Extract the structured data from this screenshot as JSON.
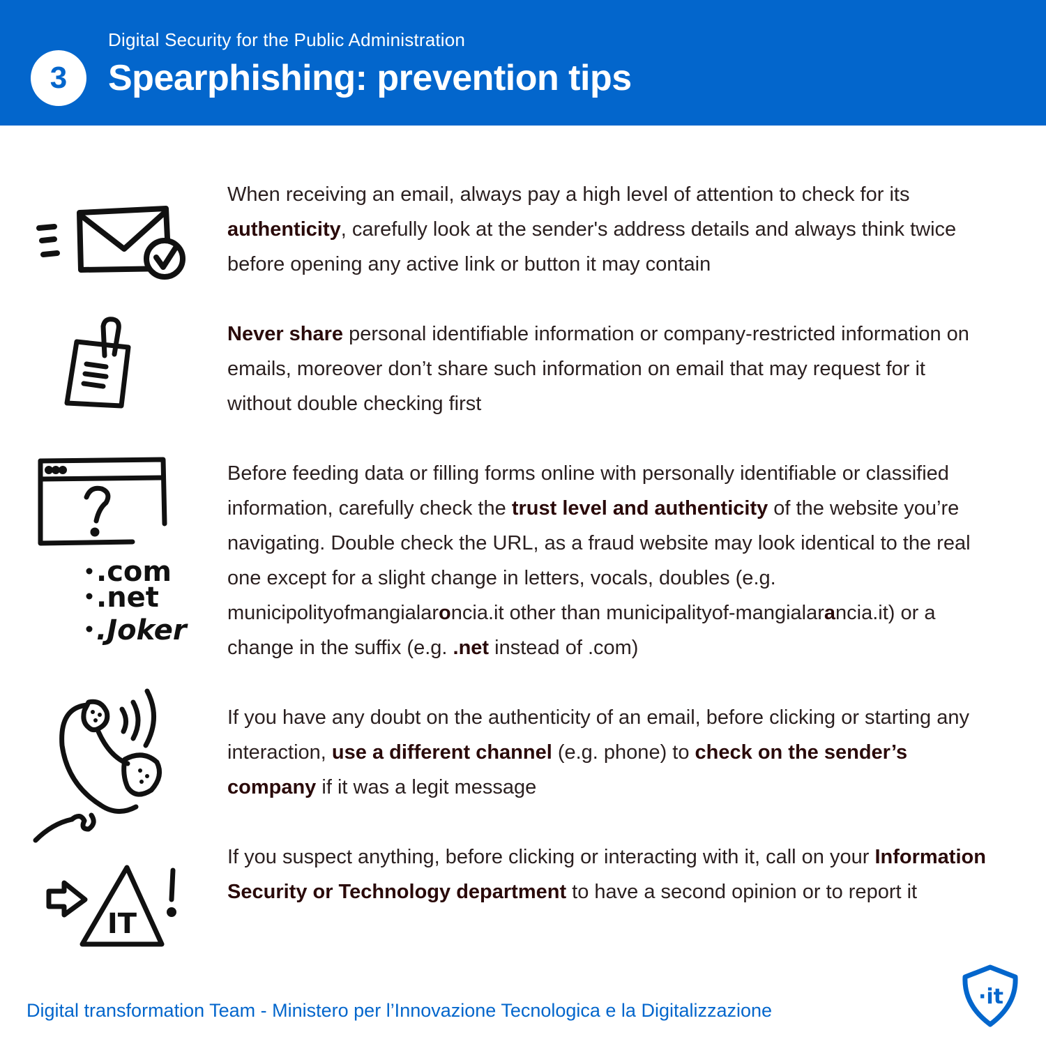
{
  "header": {
    "step_number": "3",
    "subtitle": "Digital Security for the Public Administration",
    "title": "Spearphishing: prevention tips"
  },
  "tips": [
    {
      "icon": "envelope-check-icon",
      "segments": [
        {
          "text": "When receiving an email, always pay a high level of attention to check for its ",
          "bold": false
        },
        {
          "text": "authenticity",
          "bold": true
        },
        {
          "text": ", carefully look at the sender's address details and always think twice before opening any active link or button it may contain",
          "bold": false
        }
      ]
    },
    {
      "icon": "document-clip-icon",
      "segments": [
        {
          "text": "Never share",
          "bold": true
        },
        {
          "text": " personal identifiable information or company-restricted information on emails, moreover don’t share such information on email that may request for it without double checking first",
          "bold": false
        }
      ]
    },
    {
      "icon": "browser-question-icon",
      "icon_labels": [
        ".com",
        ".net",
        ".Joker"
      ],
      "segments": [
        {
          "text": "Before feeding data or filling forms online with personally identifiable or classified information, carefully check the ",
          "bold": false
        },
        {
          "text": "trust level and authenticity",
          "bold": true
        },
        {
          "text": " of the website you’re navigating. Double check the URL, as a fraud website may look identical to the real one except for a slight change in letters, vocals, doubles (e.g. municipolityofmangialar",
          "bold": false
        },
        {
          "text": "o",
          "bold": true
        },
        {
          "text": "ncia.it other than municipalityof-mangialar",
          "bold": false
        },
        {
          "text": "a",
          "bold": true
        },
        {
          "text": "ncia.it) or a change in the suffix (e.g. ",
          "bold": false
        },
        {
          "text": ".net",
          "bold": true
        },
        {
          "text": " instead of .com)",
          "bold": false
        }
      ]
    },
    {
      "icon": "phone-ringing-icon",
      "segments": [
        {
          "text": "If you have any doubt on the authenticity of an email, before clicking or starting any interaction, ",
          "bold": false
        },
        {
          "text": "use a different channel",
          "bold": true
        },
        {
          "text": " (e.g. phone) to ",
          "bold": false
        },
        {
          "text": "check on the sender’s company",
          "bold": true
        },
        {
          "text": " if it was a legit message",
          "bold": false
        }
      ]
    },
    {
      "icon": "warning-it-icon",
      "icon_labels": [
        "IT"
      ],
      "segments": [
        {
          "text": "If you suspect anything, before clicking or interacting with it, call on your ",
          "bold": false
        },
        {
          "text": "Information Security or Technology department",
          "bold": true
        },
        {
          "text": " to have a second opinion or to report it",
          "bold": false
        }
      ]
    }
  ],
  "footer": {
    "text": "Digital transformation Team - Ministero per l’Innovazione Tecnologica e la Digitalizzazione",
    "logo_icon": "shield-it-logo-icon",
    "logo_text": "·it"
  },
  "colors": {
    "primary_blue": "#0366cc",
    "text_dark": "#2a1f1f",
    "background": "#ffffff"
  }
}
